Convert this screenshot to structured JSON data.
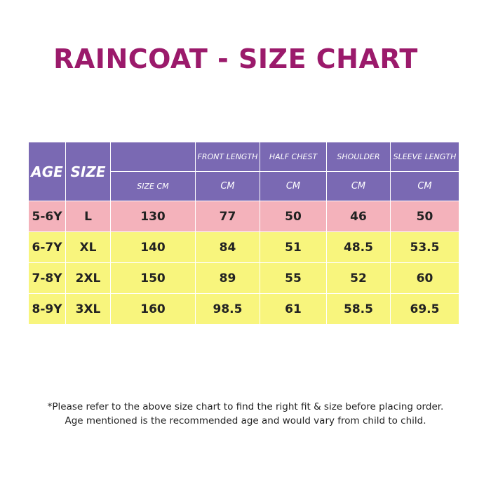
{
  "title": "RAINCOAT - SIZE CHART",
  "table": {
    "headers": {
      "age": "AGE",
      "size": "SIZE",
      "size_cm_blank": "",
      "size_cm": "SIZE CM",
      "front_length": "FRONT LENGTH",
      "half_chest": "HALF CHEST",
      "shoulder": "SHOULDER",
      "sleeve_length": "SLEEVE LENGTH",
      "unit": "CM"
    },
    "rows": [
      {
        "age": "5-6Y",
        "size": "L",
        "size_cm": "130",
        "front_length": "77",
        "half_chest": "50",
        "shoulder": "46",
        "sleeve_length": "50"
      },
      {
        "age": "6-7Y",
        "size": "XL",
        "size_cm": "140",
        "front_length": "84",
        "half_chest": "51",
        "shoulder": "48.5",
        "sleeve_length": "53.5"
      },
      {
        "age": "7-8Y",
        "size": "2XL",
        "size_cm": "150",
        "front_length": "89",
        "half_chest": "55",
        "shoulder": "52",
        "sleeve_length": "60"
      },
      {
        "age": "8-9Y",
        "size": "3XL",
        "size_cm": "160",
        "front_length": "98.5",
        "half_chest": "61",
        "shoulder": "58.5",
        "sleeve_length": "69.5"
      }
    ],
    "colors": {
      "header": "#7a69b3",
      "row_first": "#f4b2bb",
      "row_other": "#f8f57d",
      "title": "#9b1a6b"
    }
  },
  "note": {
    "line1": "*Please refer to the above size chart to find the right fit & size before placing order.",
    "line2": "Age mentioned is the recommended age and would vary from child to child."
  }
}
